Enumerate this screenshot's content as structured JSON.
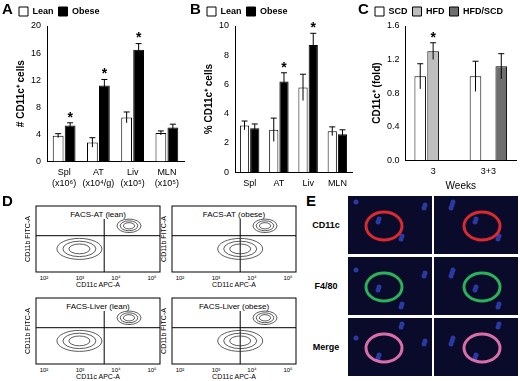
{
  "chart_data": [
    {
      "type": "bar",
      "panel_label": "A",
      "y_label": "# CD11c⁺ cells",
      "categories": [
        [
          "Spl",
          "(x10⁶)"
        ],
        [
          "AT",
          "(x10⁴/g)"
        ],
        [
          "Liv",
          "(x10⁵)"
        ],
        [
          "MLN",
          "(x10⁵)"
        ]
      ],
      "series": [
        {
          "name": "Lean",
          "color": "#ffffff",
          "values": [
            3.8,
            2.8,
            6.5,
            4.2
          ],
          "errors": [
            0.3,
            0.7,
            0.8,
            0.3
          ]
        },
        {
          "name": "Obese",
          "color": "#000000",
          "values": [
            5.3,
            11.2,
            16.5,
            5.0
          ],
          "errors": [
            0.4,
            0.9,
            0.9,
            0.5
          ]
        }
      ],
      "annotations": [
        {
          "series": "Obese",
          "index": 0,
          "text": "*"
        },
        {
          "series": "Obese",
          "index": 1,
          "text": "*"
        },
        {
          "series": "Obese",
          "index": 2,
          "text": "*"
        }
      ],
      "ylim": [
        0,
        20
      ],
      "yticks": [
        0,
        4,
        8,
        12,
        16,
        20
      ],
      "grid": false,
      "legend": "top-left"
    },
    {
      "type": "bar",
      "panel_label": "B",
      "y_label": "% CD11c⁺ cells",
      "categories": [
        "Spl",
        "AT",
        "Liv",
        "MLN"
      ],
      "series": [
        {
          "name": "Lean",
          "color": "#ffffff",
          "values": [
            3.2,
            2.9,
            5.8,
            2.8
          ],
          "errors": [
            0.3,
            0.8,
            0.9,
            0.3
          ]
        },
        {
          "name": "Obese",
          "color": "#000000",
          "values": [
            3.0,
            6.2,
            8.7,
            2.6
          ],
          "errors": [
            0.3,
            0.6,
            0.8,
            0.3
          ]
        }
      ],
      "annotations": [
        {
          "series": "Obese",
          "index": 1,
          "text": "*"
        },
        {
          "series": "Obese",
          "index": 2,
          "text": "*"
        }
      ],
      "ylim": [
        0,
        10
      ],
      "yticks": [
        0,
        2,
        4,
        6,
        8,
        10
      ],
      "grid": false,
      "legend": "top-left"
    },
    {
      "type": "bar",
      "panel_label": "C",
      "y_label": "CD11c⁺ (fold)",
      "x_label": "Weeks",
      "categories": [
        "3",
        "3+3"
      ],
      "series": [
        {
          "name": "SCD",
          "color": "#ffffff",
          "values": [
            1.0,
            1.0
          ],
          "errors": [
            0.15,
            0.18
          ]
        },
        {
          "name": "HFD",
          "color": "#bfbfbf",
          "values": [
            1.3,
            null
          ],
          "errors": [
            0.1,
            null
          ]
        },
        {
          "name": "HFD/SCD",
          "color": "#6e6e6e",
          "values": [
            null,
            1.12
          ],
          "errors": [
            null,
            0.15
          ]
        }
      ],
      "annotations": [
        {
          "series": "HFD",
          "index": 0,
          "text": "*"
        }
      ],
      "ylim": [
        0,
        1.6
      ],
      "yticks": [
        {
          "value": 0,
          "label": "0.0"
        },
        {
          "value": 0.4,
          "label": "0.4"
        },
        {
          "value": 0.8,
          "label": "0.8"
        },
        {
          "value": 1.2,
          "label": "1.2"
        },
        {
          "value": 1.6,
          "label": "1.6"
        }
      ],
      "grid": false,
      "legend": "top-left"
    }
  ],
  "figure": {
    "flow": {
      "panel_label": "D",
      "y_label": "CD11b FITC-A",
      "x_label": "CD11c APC-A",
      "ticks": [
        "10²",
        "10³",
        "10⁴",
        "10⁵"
      ],
      "plots": [
        "FACS-AT (lean)",
        "FACS-AT (obese)",
        "FACS-Liver (lean)",
        "FACS-Liver (obese)"
      ]
    },
    "images": {
      "panel_label": "E",
      "rows": [
        "CD11c",
        "F4/80",
        "Merge"
      ]
    }
  }
}
